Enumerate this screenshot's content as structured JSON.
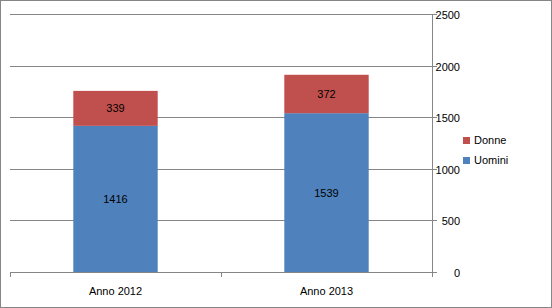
{
  "chart_data": {
    "type": "bar",
    "stacked": true,
    "categories": [
      "Anno 2012",
      "Anno 2013"
    ],
    "series": [
      {
        "name": "Uomini",
        "color": "#4f81bd",
        "values": [
          1416,
          1539
        ]
      },
      {
        "name": "Donne",
        "color": "#c0504d",
        "values": [
          339,
          372
        ]
      }
    ],
    "ylim": [
      0,
      2500
    ],
    "yticks": [
      0,
      500,
      1000,
      1500,
      2000,
      2500
    ],
    "grid": true,
    "data_labels": true,
    "legend": "right"
  }
}
